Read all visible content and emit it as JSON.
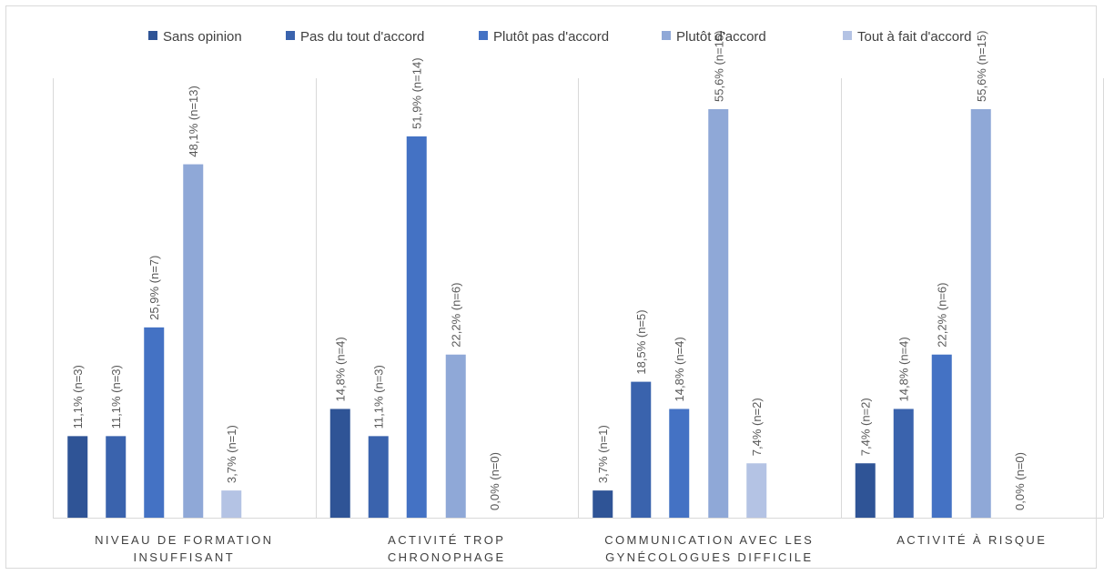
{
  "chart_data": {
    "type": "bar",
    "categories": [
      [
        "NIVEAU DE FORMATION",
        "INSUFFISANT"
      ],
      [
        "ACTIVITÉ TROP",
        "CHRONOPHAGE"
      ],
      [
        "COMMUNICATION AVEC LES",
        "GYNÉCOLOGUES DIFFICILE"
      ],
      [
        "ACTIVITÉ À RISQUE"
      ]
    ],
    "series": [
      {
        "name": "Sans opinion",
        "color": "#2f5496",
        "values": [
          11.1,
          14.8,
          3.7,
          7.4
        ],
        "labels": [
          "11,1% (n=3)",
          "14,8% (n=4)",
          "3,7% (n=1)",
          "7,4% (n=2)"
        ]
      },
      {
        "name": "Pas du tout d'accord",
        "color": "#3a63ad",
        "values": [
          11.1,
          11.1,
          18.5,
          14.8
        ],
        "labels": [
          "11,1% (n=3)",
          "11,1% (n=3)",
          "18,5% (n=5)",
          "14,8% (n=4)"
        ]
      },
      {
        "name": "Plutôt pas d'accord",
        "color": "#4472c4",
        "values": [
          25.9,
          51.9,
          14.8,
          22.2
        ],
        "labels": [
          "25,9% (n=7)",
          "51,9% (n=14)",
          "14,8% (n=4)",
          "22,2% (n=6)"
        ]
      },
      {
        "name": "Plutôt d'accord",
        "color": "#8fa8d7",
        "values": [
          48.1,
          22.2,
          55.6,
          55.6
        ],
        "labels": [
          "48,1% (n=13)",
          "22,2% (n=6)",
          "55,6% (n=15)",
          "55,6% (n=15)"
        ]
      },
      {
        "name": "Tout à fait d'accord",
        "color": "#b4c3e4",
        "values": [
          3.7,
          0,
          7.4,
          0
        ],
        "labels": [
          "3,7% (n=1)",
          "0,0% (n=0)",
          "7,4% (n=2)",
          "0,0% (n=0)"
        ]
      }
    ],
    "ylim": [
      0,
      60
    ],
    "grid": false,
    "legend": "top"
  }
}
